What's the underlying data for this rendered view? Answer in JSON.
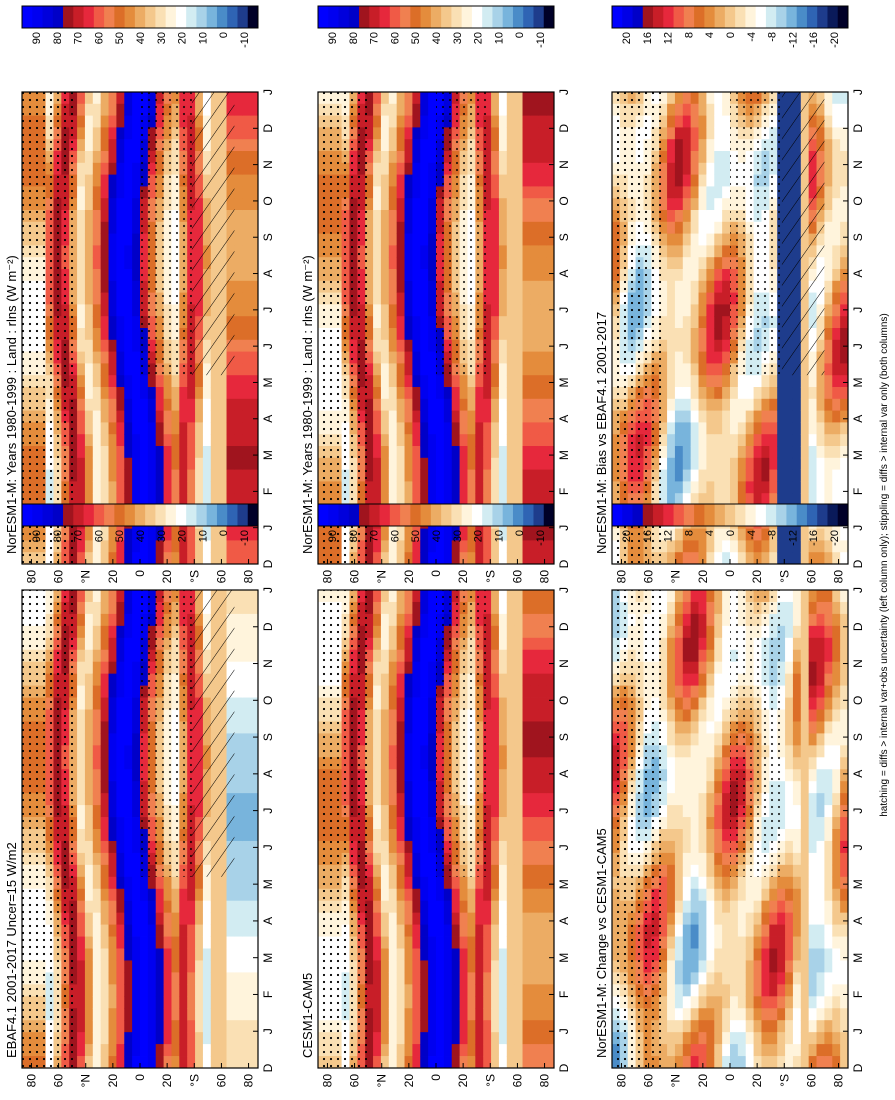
{
  "figure": {
    "footnote": "hatching = diffs > internal var+obs uncertainty (left column only); stippling = diffs > internal var only (both columns)",
    "months": [
      "D",
      "J",
      "F",
      "M",
      "A",
      "M",
      "J",
      "J",
      "A",
      "S",
      "O",
      "N",
      "D",
      "J"
    ],
    "lat_ticks": [
      "80",
      "60",
      "°N",
      "20",
      "0",
      "20",
      "°S",
      "60",
      "80"
    ],
    "abs_colorbar_labels": [
      "90",
      "80",
      "70",
      "60",
      "50",
      "40",
      "30",
      "20",
      "10",
      "0",
      "-10"
    ],
    "diff_colorbar_labels": [
      "20",
      "16",
      "12",
      "8",
      "4",
      "0",
      "-4",
      "-8",
      "-12",
      "-16",
      "-20"
    ],
    "abs_colors": [
      "#000028",
      "#0a1a5a",
      "#1e3c8c",
      "#2f64b4",
      "#4a8cc8",
      "#78b4dc",
      "#a8d2e8",
      "#d2ecf2",
      "#ffffff",
      "#fff4dc",
      "#fae0b4",
      "#f4c88c",
      "#ecac64",
      "#e48c3c",
      "#dc6e28",
      "#f08050",
      "#f05a46",
      "#e6283c",
      "#c81e28",
      "#a0141e",
      "#0000c8",
      "#0000dc",
      "#0000f0",
      "#0000ff"
    ],
    "diff_colors": [
      "#000028",
      "#0a1a5a",
      "#1e3c8c",
      "#2f64b4",
      "#4a8cc8",
      "#78b4dc",
      "#a8d2e8",
      "#d2ecf2",
      "#ffffff",
      "#fff4dc",
      "#fae0b4",
      "#f4c88c",
      "#ecac64",
      "#e48c3c",
      "#dc6e28",
      "#f08050",
      "#f05a46",
      "#e6283c",
      "#c81e28",
      "#a0141e",
      "#0000c8",
      "#0000f0"
    ]
  },
  "panels": [
    {
      "title": "NorESM1-M: Years 1980-1999 : Land : rlns (W m⁻²)",
      "kind": "abs",
      "variant": 0,
      "hatch": true
    },
    {
      "title": "NorESM1-M: Years 1980-1999 : Land : rlns (W m⁻²)",
      "kind": "abs",
      "variant": 1,
      "hatch": false
    },
    {
      "title": "EBAF4.1 2001-2017 Uncer=15 W/m2",
      "kind": "abs",
      "variant": 2,
      "hatch": true
    },
    {
      "title": "CESM1-CAM5",
      "kind": "abs",
      "variant": 3,
      "hatch": false
    },
    {
      "title": "NorESM1-M: Bias vs EBAF4.1 2001-2017",
      "kind": "diff",
      "variant": 4,
      "hatch": true
    },
    {
      "title": "NorESM1-M: Change vs CESM1-CAM5",
      "kind": "diff",
      "variant": 5,
      "hatch": false
    }
  ],
  "chart_data": [
    {
      "type": "heatmap",
      "title": "NorESM1-M: Years 1980-1999 : Land : rlns (W m⁻²)",
      "x": [
        "D",
        "J",
        "F",
        "M",
        "A",
        "M",
        "J",
        "J",
        "A",
        "S",
        "O",
        "N",
        "D",
        "J"
      ],
      "y": [
        "80",
        "60",
        "°N",
        "20",
        "0",
        "20",
        "°S",
        "60",
        "80"
      ],
      "colorbar": [
        "90",
        "80",
        "70",
        "60",
        "50",
        "40",
        "30",
        "20",
        "10",
        "0",
        "-10"
      ]
    },
    {
      "type": "heatmap",
      "title": "NorESM1-M: Years 1980-1999 : Land : rlns (W m⁻²)",
      "x": [
        "D",
        "J",
        "F",
        "M",
        "A",
        "M",
        "J",
        "J",
        "A",
        "S",
        "O",
        "N",
        "D",
        "J"
      ],
      "y": [
        "80",
        "60",
        "°N",
        "20",
        "0",
        "20",
        "°S",
        "60",
        "80"
      ],
      "colorbar": [
        "90",
        "80",
        "70",
        "60",
        "50",
        "40",
        "30",
        "20",
        "10",
        "0",
        "-10"
      ]
    },
    {
      "type": "heatmap",
      "title": "EBAF4.1 2001-2017 Uncer=15 W/m2",
      "x": [
        "D",
        "J",
        "F",
        "M",
        "A",
        "M",
        "J",
        "J",
        "A",
        "S",
        "O",
        "N",
        "D",
        "J"
      ],
      "y": [
        "80",
        "60",
        "°N",
        "20",
        "0",
        "20",
        "°S",
        "60",
        "80"
      ],
      "colorbar": [
        "90",
        "80",
        "70",
        "60",
        "50",
        "40",
        "30",
        "20",
        "10",
        "0",
        "-10"
      ]
    },
    {
      "type": "heatmap",
      "title": "CESM1-CAM5",
      "x": [
        "D",
        "J",
        "F",
        "M",
        "A",
        "M",
        "J",
        "J",
        "A",
        "S",
        "O",
        "N",
        "D",
        "J"
      ],
      "y": [
        "80",
        "60",
        "°N",
        "20",
        "0",
        "20",
        "°S",
        "60",
        "80"
      ],
      "colorbar": [
        "90",
        "80",
        "70",
        "60",
        "50",
        "40",
        "30",
        "20",
        "10",
        "0",
        "-10"
      ]
    },
    {
      "type": "heatmap",
      "title": "NorESM1-M: Bias vs EBAF4.1 2001-2017",
      "x": [
        "D",
        "J",
        "F",
        "M",
        "A",
        "M",
        "J",
        "J",
        "A",
        "S",
        "O",
        "N",
        "D",
        "J"
      ],
      "y": [
        "80",
        "60",
        "°N",
        "20",
        "0",
        "20",
        "°S",
        "60",
        "80"
      ],
      "colorbar": [
        "20",
        "16",
        "12",
        "8",
        "4",
        "0",
        "-4",
        "-8",
        "-12",
        "-16",
        "-20"
      ]
    },
    {
      "type": "heatmap",
      "title": "NorESM1-M: Change vs CESM1-CAM5",
      "x": [
        "D",
        "J",
        "F",
        "M",
        "A",
        "M",
        "J",
        "J",
        "A",
        "S",
        "O",
        "N",
        "D",
        "J"
      ],
      "y": [
        "80",
        "60",
        "°N",
        "20",
        "0",
        "20",
        "°S",
        "60",
        "80"
      ],
      "colorbar": [
        "20",
        "16",
        "12",
        "8",
        "4",
        "0",
        "-4",
        "-8",
        "-12",
        "-16",
        "-20"
      ]
    }
  ]
}
